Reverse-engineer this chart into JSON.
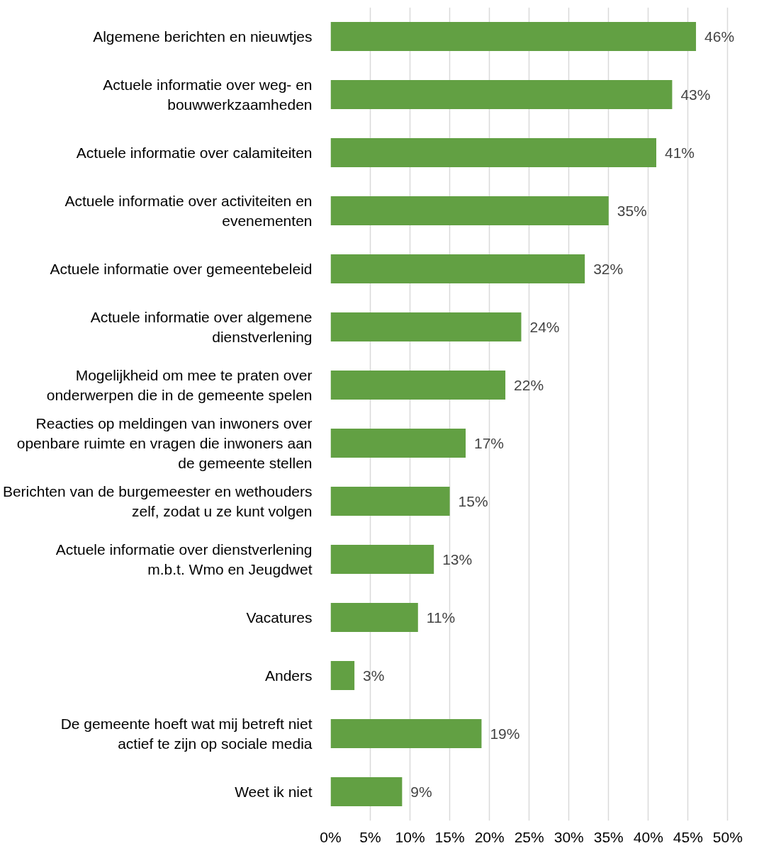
{
  "chart_data": {
    "type": "bar",
    "orientation": "horizontal",
    "categories": [
      "Algemene berichten en nieuwtjes",
      "Actuele informatie over weg- en bouwwerkzaamheden",
      "Actuele informatie over calamiteiten",
      "Actuele informatie over activiteiten en evenementen",
      "Actuele informatie over gemeentebeleid",
      "Actuele informatie over algemene dienstverlening",
      "Mogelijkheid om mee te praten over onderwerpen die in de gemeente spelen",
      "Reacties op meldingen van inwoners over openbare ruimte en vragen die inwoners aan de gemeente stellen",
      "Berichten van de burgemeester en wethouders zelf, zodat u ze kunt volgen",
      "Actuele informatie over dienstverlening m.b.t. Wmo en Jeugdwet",
      "Vacatures",
      "Anders",
      "De gemeente hoeft wat mij betreft niet actief te zijn op sociale media",
      "Weet ik niet"
    ],
    "values": [
      46,
      43,
      41,
      35,
      32,
      24,
      22,
      17,
      15,
      13,
      11,
      3,
      19,
      9
    ],
    "value_labels": [
      "46%",
      "43%",
      "41%",
      "35%",
      "32%",
      "24%",
      "22%",
      "17%",
      "15%",
      "13%",
      "11%",
      "3%",
      "19%",
      "9%"
    ],
    "color": "#62a043",
    "xlim": [
      0,
      50
    ],
    "xticks": [
      {
        "value": 0,
        "label": "0%"
      },
      {
        "value": 5,
        "label": "5%"
      },
      {
        "value": 10,
        "label": "10%"
      },
      {
        "value": 15,
        "label": "15%"
      },
      {
        "value": 20,
        "label": "20%"
      },
      {
        "value": 25,
        "label": "25%"
      },
      {
        "value": 30,
        "label": "30%"
      },
      {
        "value": 35,
        "label": "35%"
      },
      {
        "value": 40,
        "label": "40%"
      },
      {
        "value": 45,
        "label": "45%"
      },
      {
        "value": 50,
        "label": "50%"
      }
    ],
    "grid": "x"
  }
}
